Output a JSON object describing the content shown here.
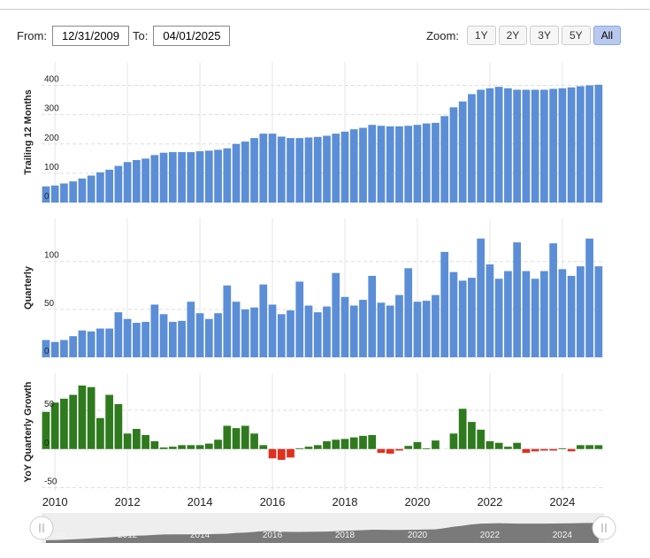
{
  "controls": {
    "from_label": "From:",
    "from_value": "12/31/2009",
    "to_label": "To:",
    "to_value": "04/01/2025",
    "zoom_label": "Zoom:",
    "zoom_options": [
      "1Y",
      "2Y",
      "3Y",
      "5Y",
      "All"
    ],
    "zoom_active": 4
  },
  "chart_data": [
    {
      "type": "bar",
      "y_label": "Trailing 12 Months",
      "color": "#5b8ed6",
      "xlim": [
        2009.63,
        2025.15
      ],
      "ylim": [
        0,
        480
      ],
      "yticks": [
        0,
        100,
        200,
        300,
        400
      ],
      "grid": true,
      "x": [
        2009.75,
        2010,
        2010.25,
        2010.5,
        2010.75,
        2011,
        2011.25,
        2011.5,
        2011.75,
        2012,
        2012.25,
        2012.5,
        2012.75,
        2013,
        2013.25,
        2013.5,
        2013.75,
        2014,
        2014.25,
        2014.5,
        2014.75,
        2015,
        2015.25,
        2015.5,
        2015.75,
        2016,
        2016.25,
        2016.5,
        2016.75,
        2017,
        2017.25,
        2017.5,
        2017.75,
        2018,
        2018.25,
        2018.5,
        2018.75,
        2019,
        2019.25,
        2019.5,
        2019.75,
        2020,
        2020.25,
        2020.5,
        2020.75,
        2021,
        2021.25,
        2021.5,
        2021.75,
        2022,
        2022.25,
        2022.5,
        2022.75,
        2023,
        2023.25,
        2023.5,
        2023.75,
        2024,
        2024.25,
        2024.5,
        2024.75,
        2025
      ],
      "values": [
        55,
        58,
        65,
        72,
        82,
        92,
        103,
        112,
        125,
        138,
        145,
        150,
        162,
        170,
        172,
        172,
        172,
        175,
        177,
        180,
        185,
        200,
        208,
        220,
        235,
        235,
        225,
        220,
        220,
        222,
        224,
        228,
        235,
        242,
        250,
        255,
        265,
        262,
        260,
        260,
        262,
        265,
        270,
        272,
        295,
        325,
        345,
        370,
        385,
        390,
        395,
        390,
        385,
        385,
        385,
        385,
        388,
        390,
        393,
        397,
        400,
        402
      ]
    },
    {
      "type": "bar",
      "y_label": "Quarterly",
      "color": "#5b8ed6",
      "xlim": [
        2009.63,
        2025.15
      ],
      "ylim": [
        0,
        145
      ],
      "yticks": [
        0,
        50,
        100
      ],
      "grid": true,
      "x": [
        2009.75,
        2010,
        2010.25,
        2010.5,
        2010.75,
        2011,
        2011.25,
        2011.5,
        2011.75,
        2012,
        2012.25,
        2012.5,
        2012.75,
        2013,
        2013.25,
        2013.5,
        2013.75,
        2014,
        2014.25,
        2014.5,
        2014.75,
        2015,
        2015.25,
        2015.5,
        2015.75,
        2016,
        2016.25,
        2016.5,
        2016.75,
        2017,
        2017.25,
        2017.5,
        2017.75,
        2018,
        2018.25,
        2018.5,
        2018.75,
        2019,
        2019.25,
        2019.5,
        2019.75,
        2020,
        2020.25,
        2020.5,
        2020.75,
        2021,
        2021.25,
        2021.5,
        2021.75,
        2022,
        2022.25,
        2022.5,
        2022.75,
        2023,
        2023.25,
        2023.5,
        2023.75,
        2024,
        2024.25,
        2024.5,
        2024.75,
        2025
      ],
      "values": [
        18,
        16,
        18,
        22,
        28,
        27,
        30,
        30,
        47,
        40,
        36,
        37,
        55,
        45,
        37,
        38,
        58,
        46,
        40,
        46,
        75,
        58,
        50,
        52,
        76,
        55,
        45,
        49,
        79,
        54,
        47,
        53,
        88,
        63,
        54,
        60,
        85,
        57,
        54,
        65,
        93,
        58,
        59,
        65,
        110,
        89,
        80,
        83,
        124,
        97,
        82,
        90,
        120,
        90,
        82,
        90,
        119,
        92,
        85,
        95,
        124,
        95
      ]
    },
    {
      "type": "bar",
      "y_label": "YoY Quarterly Growth",
      "color": "#2f7a1e",
      "negative_color": "#e03020",
      "xlim": [
        2009.63,
        2025.15
      ],
      "ylim": [
        -54,
        98
      ],
      "yticks": [
        -50,
        0,
        50
      ],
      "xticks": [
        2010,
        2012,
        2014,
        2016,
        2018,
        2020,
        2022,
        2024
      ],
      "grid": true,
      "x": [
        2009.75,
        2010,
        2010.25,
        2010.5,
        2010.75,
        2011,
        2011.25,
        2011.5,
        2011.75,
        2012,
        2012.25,
        2012.5,
        2012.75,
        2013,
        2013.25,
        2013.5,
        2013.75,
        2014,
        2014.25,
        2014.5,
        2014.75,
        2015,
        2015.25,
        2015.5,
        2015.75,
        2016,
        2016.25,
        2016.5,
        2016.75,
        2017,
        2017.25,
        2017.5,
        2017.75,
        2018,
        2018.25,
        2018.5,
        2018.75,
        2019,
        2019.25,
        2019.5,
        2019.75,
        2020,
        2020.25,
        2020.5,
        2020.75,
        2021,
        2021.25,
        2021.5,
        2021.75,
        2022,
        2022.25,
        2022.5,
        2022.75,
        2023,
        2023.25,
        2023.5,
        2023.75,
        2024,
        2024.25,
        2024.5,
        2024.75,
        2025
      ],
      "values": [
        48,
        60,
        65,
        70,
        82,
        80,
        40,
        70,
        58,
        20,
        26,
        18,
        10,
        2,
        3,
        5,
        5,
        5,
        7,
        12,
        30,
        27,
        30,
        20,
        5,
        -12,
        -14,
        -11,
        1,
        3,
        5,
        10,
        12,
        13,
        15,
        17,
        18,
        -5,
        -6,
        -2,
        4,
        9,
        1,
        11,
        0,
        20,
        52,
        35,
        25,
        10,
        8,
        3,
        8,
        -5,
        -3,
        -2,
        -2,
        1,
        -3,
        5,
        5,
        5
      ]
    }
  ]
}
